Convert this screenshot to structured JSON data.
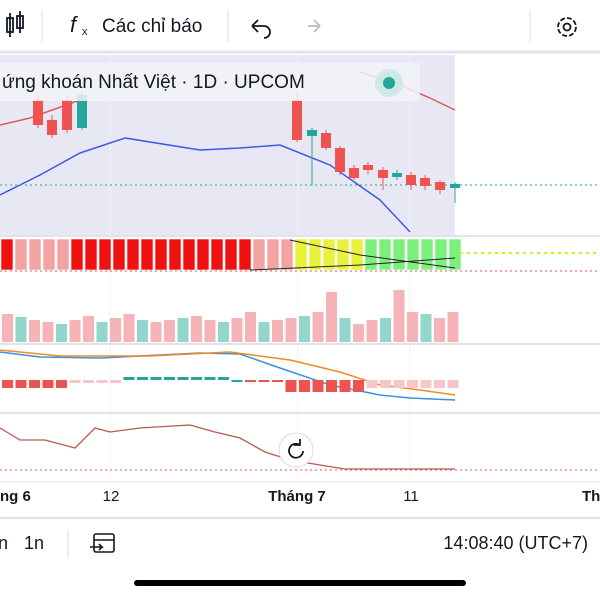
{
  "toolbar": {
    "indicators": "Các chỉ báo"
  },
  "legend": {
    "title": "ứng khoán Nhất Việt · 1D · UPCOM"
  },
  "x_axis": {
    "labels": [
      "ng 6",
      "12",
      "Tháng 7",
      "11",
      "Th"
    ]
  },
  "bottom_bar": {
    "ranges": [
      "n",
      "1n"
    ],
    "clock": "14:08:40 (UTC+7)"
  }
}
